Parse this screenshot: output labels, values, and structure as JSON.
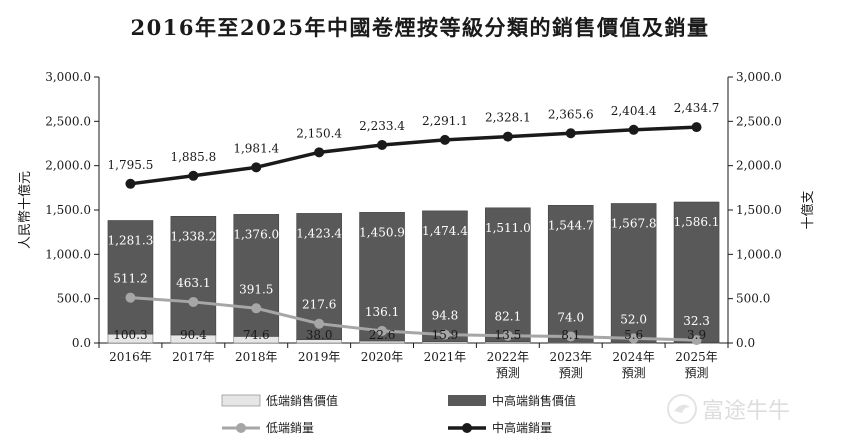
{
  "chart_data": {
    "type": "bar",
    "title": "2016年至2025年中國卷煙按等級分類的銷售價值及銷量",
    "categories": [
      "2016年",
      "2017年",
      "2018年",
      "2019年",
      "2020年",
      "2021年",
      "2022年\n預測",
      "2023年\n預測",
      "2024年\n預測",
      "2025年\n預測"
    ],
    "ylabel_left": "人民幣十億元",
    "ylabel_right": "十億支",
    "ylim_left": [
      0,
      3000
    ],
    "ylim_right": [
      0,
      3000
    ],
    "yticks_left": [
      "3,000.0",
      "2,500.0",
      "2,000.0",
      "1,500.0",
      "1,000.0",
      "500.0",
      "0.0"
    ],
    "yticks_right": [
      "3,000.0",
      "2,500.0",
      "2,000.0",
      "1,500.0",
      "1,000.0",
      "500.0",
      "0.0"
    ],
    "stacked": true,
    "series": [
      {
        "name": "低端銷售價值",
        "kind": "bar",
        "color": "#e6e6e6",
        "values": [
          100.3,
          90.4,
          74.6,
          38.0,
          22.6,
          15.9,
          13.5,
          8.1,
          5.6,
          3.9
        ],
        "labels": [
          "100.3",
          "90.4",
          "74.6",
          "38.0",
          "22.6",
          "15.9",
          "13.5",
          "8.1",
          "5.6",
          "3.9"
        ]
      },
      {
        "name": "中高端銷售價值",
        "kind": "bar",
        "color": "#595959",
        "values": [
          1281.3,
          1338.2,
          1376.0,
          1423.4,
          1450.9,
          1474.4,
          1511.0,
          1544.7,
          1567.8,
          1586.1
        ],
        "labels": [
          "1,281.3",
          "1,338.2",
          "1,376.0",
          "1,423.4",
          "1,450.9",
          "1,474.4",
          "1,511.0",
          "1,544.7",
          "1,567.8",
          "1,586.1"
        ]
      },
      {
        "name": "低端銷量",
        "kind": "line",
        "color": "#a6a6a6",
        "values": [
          511.2,
          463.1,
          391.5,
          217.6,
          136.1,
          94.8,
          82.1,
          74.0,
          52.0,
          32.3
        ],
        "labels": [
          "511.2",
          "463.1",
          "391.5",
          "217.6",
          "136.1",
          "94.8",
          "82.1",
          "74.0",
          "52.0",
          "32.3"
        ]
      },
      {
        "name": "中高端銷量",
        "kind": "line",
        "color": "#1a1a1a",
        "values": [
          1795.5,
          1885.8,
          1981.4,
          2150.4,
          2233.4,
          2291.1,
          2328.1,
          2365.6,
          2404.4,
          2434.7
        ],
        "labels": [
          "1,795.5",
          "1,885.8",
          "1,981.4",
          "2,150.4",
          "2,233.4",
          "2,291.1",
          "2,328.1",
          "2,365.6",
          "2,404.4",
          "2,434.7"
        ]
      }
    ],
    "legend": [
      "低端銷售價值",
      "中高端銷售價值",
      "低端銷量",
      "中高端銷量"
    ],
    "legend_position": "bottom",
    "grid": false
  },
  "watermark": {
    "text": "富途牛牛",
    "icon": "futu-logo-icon"
  }
}
